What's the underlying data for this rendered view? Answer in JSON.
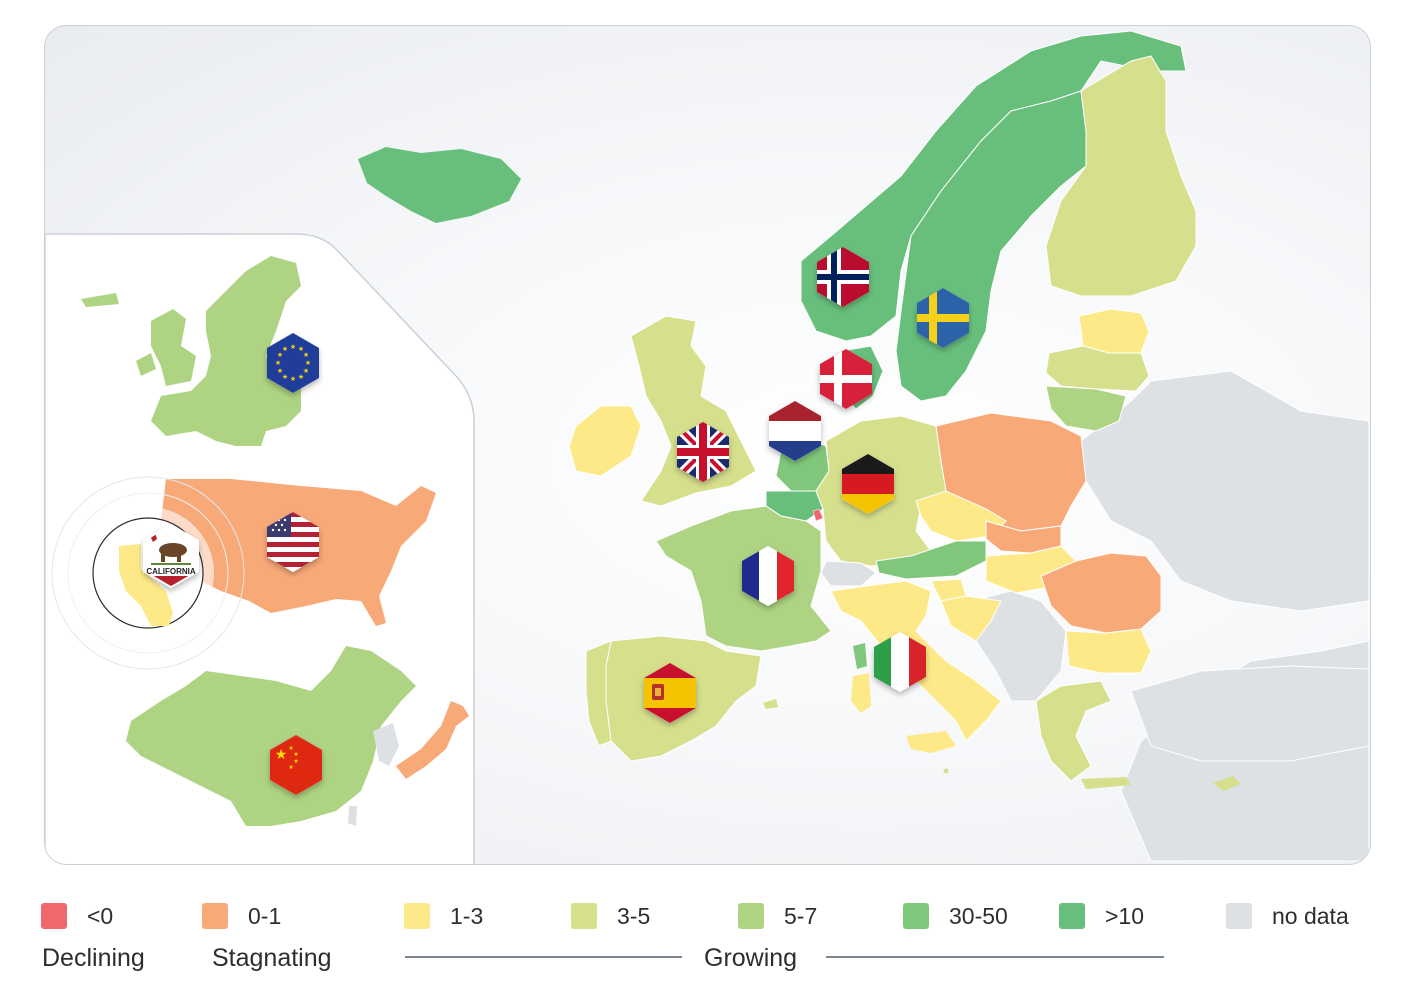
{
  "colors": {
    "declining": "#f0676c",
    "stagnating": "#f8a978",
    "growth_1_3": "#fde987",
    "growth_3_5": "#d6df8c",
    "growth_5_7": "#aed382",
    "growth_30_50": "#80c77b",
    "growth_gt10": "#68bf7c",
    "no_data": "#dee1e4"
  },
  "insets": {
    "california_badge": "CALIFORNIA"
  },
  "flags": [
    {
      "country": "Norway",
      "icon": "norway-flag-icon"
    },
    {
      "country": "Sweden",
      "icon": "sweden-flag-icon"
    },
    {
      "country": "Denmark",
      "icon": "denmark-flag-icon"
    },
    {
      "country": "Netherlands",
      "icon": "netherlands-flag-icon"
    },
    {
      "country": "United Kingdom",
      "icon": "uk-flag-icon"
    },
    {
      "country": "Germany",
      "icon": "germany-flag-icon"
    },
    {
      "country": "France",
      "icon": "france-flag-icon"
    },
    {
      "country": "Italy",
      "icon": "italy-flag-icon"
    },
    {
      "country": "Spain",
      "icon": "spain-flag-icon"
    },
    {
      "country": "European Union",
      "icon": "eu-flag-icon"
    },
    {
      "country": "United States",
      "icon": "usa-flag-icon"
    },
    {
      "country": "China",
      "icon": "china-flag-icon"
    }
  ],
  "legend": {
    "items": [
      {
        "label": "<0",
        "color": "#f0676c"
      },
      {
        "label": "0-1",
        "color": "#f8a978"
      },
      {
        "label": "1-3",
        "color": "#fde987"
      },
      {
        "label": "3-5",
        "color": "#d6df8c"
      },
      {
        "label": "5-7",
        "color": "#aed382"
      },
      {
        "label": "30-50",
        "color": "#80c77b"
      },
      {
        "label": ">10",
        "color": "#68bf7c"
      },
      {
        "label": "no data",
        "color": "#dee1e4"
      }
    ],
    "groups": [
      "Declining",
      "Stagnating",
      "Growing"
    ]
  }
}
